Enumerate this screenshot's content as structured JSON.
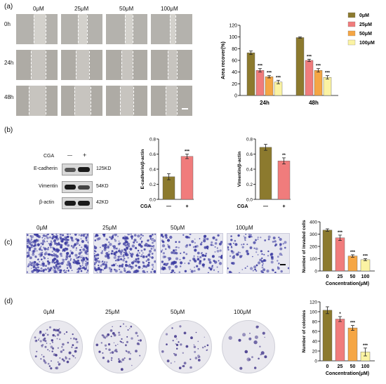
{
  "panels": {
    "a": "(a)",
    "b": "(b)",
    "c": "(c)",
    "d": "(d)"
  },
  "conc_labels": [
    "0μM",
    "25μM",
    "50μM",
    "100μM"
  ],
  "time_labels": [
    "0h",
    "24h",
    "48h"
  ],
  "blot": {
    "treatment_label": "CGA",
    "signs": [
      "—",
      "+"
    ],
    "proteins": [
      "E-cadherin",
      "Vimentin",
      "β-actin"
    ],
    "sizes": [
      "125KD",
      "54KD",
      "42KD"
    ]
  },
  "colors": {
    "c0": "#8c7a2e",
    "c1": "#f07c7c",
    "c2": "#f5a644",
    "c3": "#fbf3a3",
    "edge": "#333333"
  },
  "chart_data": [
    {
      "id": "wound",
      "type": "bar",
      "categories": [
        "24h",
        "48h"
      ],
      "series": [
        {
          "name": "0μM",
          "values": [
            73,
            99
          ],
          "errors": [
            3,
            1
          ],
          "sig": [
            "",
            ""
          ]
        },
        {
          "name": "25μM",
          "values": [
            43,
            60
          ],
          "errors": [
            3,
            2
          ],
          "sig": [
            "***",
            "***"
          ]
        },
        {
          "name": "50μM",
          "values": [
            32,
            43
          ],
          "errors": [
            2,
            3
          ],
          "sig": [
            "***",
            "***"
          ]
        },
        {
          "name": "100μM",
          "values": [
            23,
            31
          ],
          "errors": [
            3,
            3
          ],
          "sig": [
            "***",
            "***"
          ]
        }
      ],
      "ylabel": "Area recover(%)",
      "xlabel": "",
      "ylim": [
        0,
        120
      ],
      "yticks": [
        0,
        20,
        40,
        60,
        80,
        100,
        120
      ],
      "legend": "top-right"
    },
    {
      "id": "ecad",
      "type": "bar",
      "categories": [
        "—",
        "+"
      ],
      "xlabel": "CGA",
      "values": [
        0.3,
        0.57
      ],
      "errors": [
        0.04,
        0.03
      ],
      "sig": [
        "",
        "***"
      ],
      "ylabel": "E-cadherin/β-actin",
      "ylim": [
        0,
        0.8
      ],
      "yticks": [
        0.0,
        0.2,
        0.4,
        0.6,
        0.8
      ]
    },
    {
      "id": "vim",
      "type": "bar",
      "categories": [
        "—",
        "+"
      ],
      "xlabel": "CGA",
      "values": [
        0.69,
        0.51
      ],
      "errors": [
        0.04,
        0.04
      ],
      "sig": [
        "",
        "**"
      ],
      "ylabel": "Vimentin/β-actin",
      "ylim": [
        0,
        0.8
      ],
      "yticks": [
        0.0,
        0.2,
        0.4,
        0.6,
        0.8
      ]
    },
    {
      "id": "invade",
      "type": "bar",
      "categories": [
        "0",
        "25",
        "50",
        "100"
      ],
      "xlabel": "Concentration(μM)",
      "values": [
        333,
        270,
        122,
        92
      ],
      "errors": [
        10,
        22,
        10,
        8
      ],
      "sig": [
        "",
        "***",
        "***",
        "***"
      ],
      "ylabel": "Number of invaded cells",
      "ylim": [
        0,
        400
      ],
      "yticks": [
        0,
        100,
        200,
        300,
        400
      ]
    },
    {
      "id": "colony",
      "type": "bar",
      "categories": [
        "0",
        "25",
        "50",
        "100"
      ],
      "xlabel": "Concentration(μM)",
      "values": [
        103,
        85,
        67,
        18
      ],
      "errors": [
        7,
        5,
        5,
        8
      ],
      "sig": [
        "",
        "*",
        "***",
        "***"
      ],
      "ylabel": "Number of colonies",
      "ylim": [
        0,
        120
      ],
      "yticks": [
        0,
        20,
        40,
        60,
        80,
        100,
        120
      ]
    }
  ]
}
